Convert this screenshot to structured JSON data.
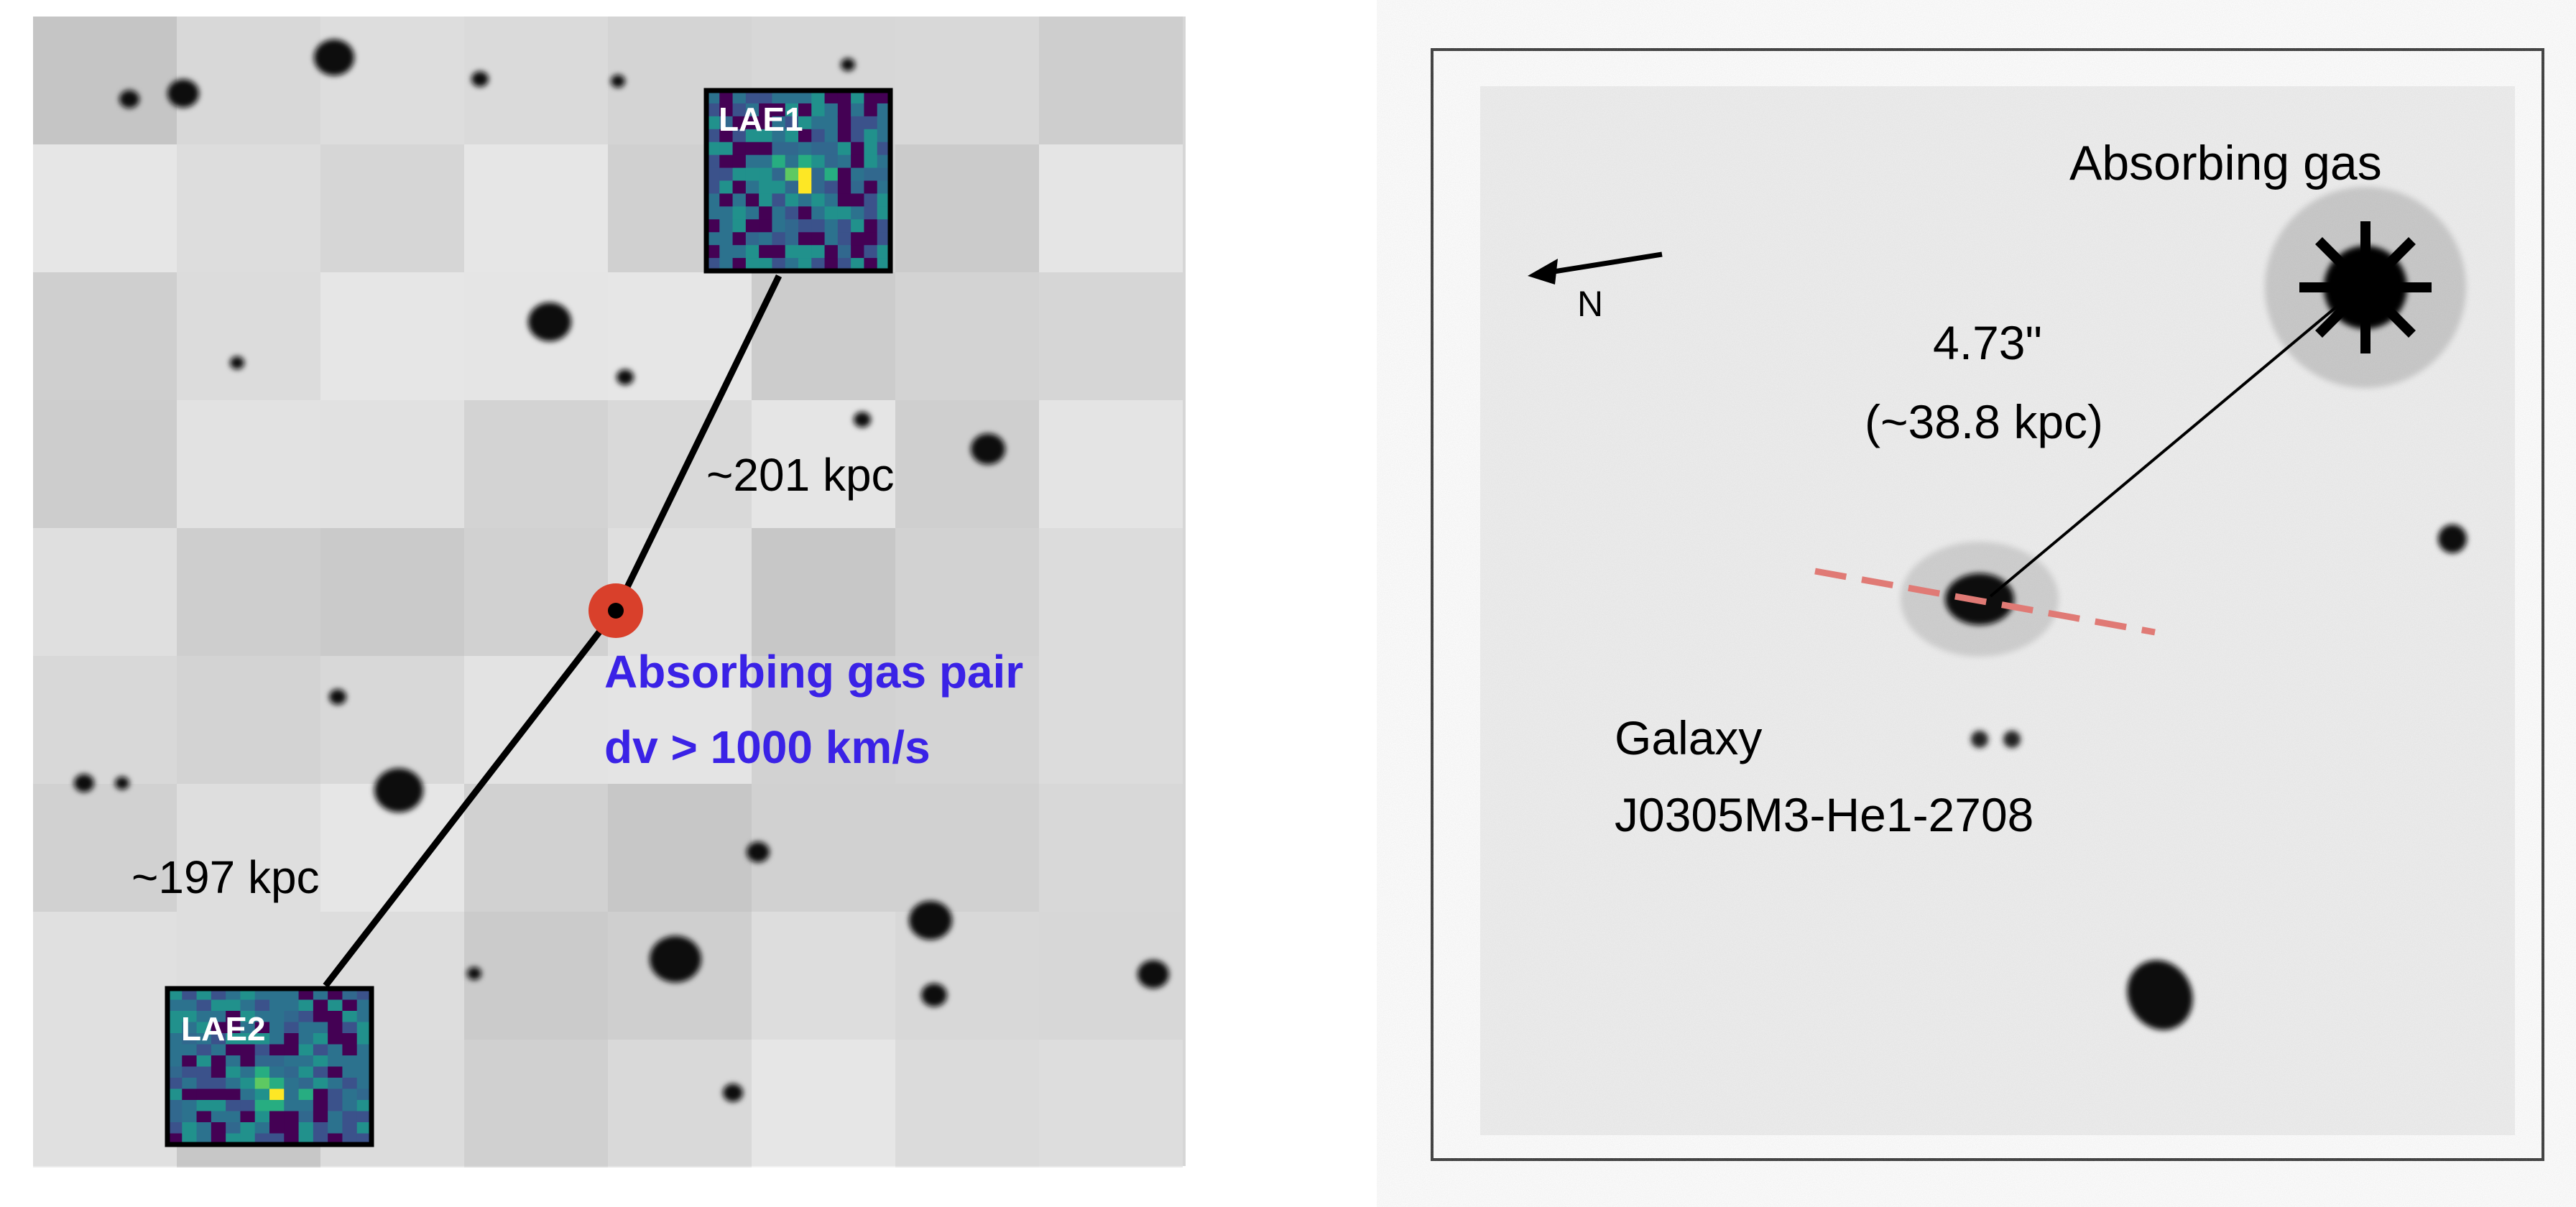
{
  "left_panel": {
    "inset_1": "LAE1",
    "inset_2": "LAE2",
    "distance_1": "~201 kpc",
    "distance_2": "~197 kpc",
    "caption_line_1": "Absorbing gas pair",
    "caption_line_2": "dv > 1000 km/s"
  },
  "right_panel": {
    "compass": "N",
    "target_label": "Absorbing gas",
    "separation": "4.73\"",
    "separation_kpc": "(~38.8 kpc)",
    "galaxy_line_1": "Galaxy",
    "galaxy_line_2": "J0305M3-He1-2708"
  }
}
